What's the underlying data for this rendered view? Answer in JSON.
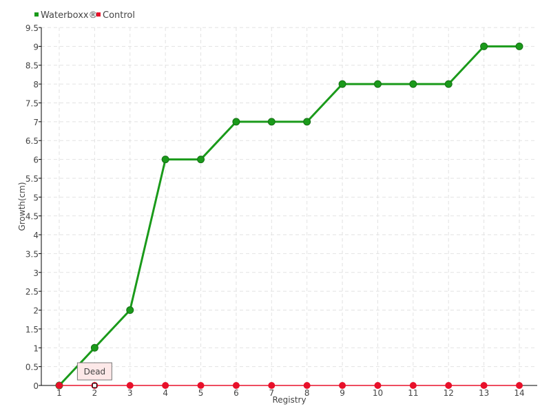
{
  "chart_data": {
    "type": "line",
    "categories": [
      "1",
      "2",
      "3",
      "4",
      "5",
      "6",
      "7",
      "8",
      "9",
      "10",
      "11",
      "12",
      "13",
      "14"
    ],
    "series": [
      {
        "name": "Waterboxx®",
        "color": "#1a9a1a",
        "values": [
          0,
          1,
          2,
          6,
          6,
          7,
          7,
          7,
          8,
          8,
          8,
          8,
          9,
          9
        ]
      },
      {
        "name": "Control",
        "color": "#e8102a",
        "values": [
          0,
          0,
          0,
          0,
          0,
          0,
          0,
          0,
          0,
          0,
          0,
          0,
          0,
          0
        ]
      }
    ],
    "xlabel": "Registry",
    "ylabel": "Growth(cm)",
    "ylim": [
      0,
      9.5
    ],
    "yticks": [
      "0",
      "0.5",
      "1",
      "1.5",
      "2",
      "2.5",
      "3",
      "3.5",
      "4",
      "4.5",
      "5",
      "5.5",
      "6",
      "6.5",
      "7",
      "7.5",
      "8",
      "8.5",
      "9",
      "9.5"
    ],
    "grid": true,
    "legend": "top-left",
    "tooltip": {
      "text": "Dead",
      "category": "2",
      "series": "Control"
    }
  }
}
